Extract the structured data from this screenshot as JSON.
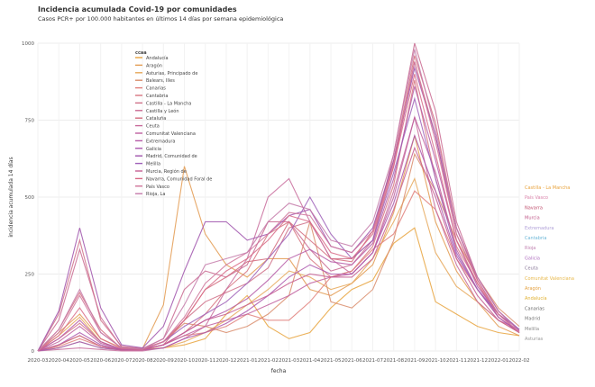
{
  "header": {
    "title": "Incidencia acumulada Covid-19 por comunidades",
    "subtitle": "Casos PCR+ por 100.000 habitantes en últimos 14 días por semana epidemiológica"
  },
  "chart_data": {
    "type": "line",
    "xlabel": "fecha",
    "ylabel": "incidencia acumulada 14 días",
    "xlim": [
      0,
      23
    ],
    "ylim": [
      0,
      1000
    ],
    "x_ticks": [
      "2020-03",
      "2020-04",
      "2020-05",
      "2020-06",
      "2020-07",
      "2020-08",
      "2020-09",
      "2020-10",
      "2020-11",
      "2020-12",
      "2021-01",
      "2021-02",
      "2021-03",
      "2021-04",
      "2021-05",
      "2021-06",
      "2021-07",
      "2021-08",
      "2021-09",
      "2021-10",
      "2021-11",
      "2021-12",
      "2022-01",
      "2022-02"
    ],
    "y_ticks": [
      0,
      250,
      500,
      750,
      1000
    ],
    "grid": true,
    "legend_title": "ccaa",
    "legend_position": "top-left inside",
    "series": [
      {
        "name": "Andalucía",
        "color": "#e8a33d",
        "values": [
          0,
          20,
          50,
          15,
          5,
          5,
          10,
          20,
          40,
          120,
          180,
          80,
          40,
          60,
          140,
          200,
          230,
          350,
          400,
          160,
          120,
          80,
          60,
          50
        ]
      },
      {
        "name": "Aragón",
        "color": "#e39a50",
        "values": [
          0,
          60,
          120,
          40,
          10,
          8,
          150,
          600,
          380,
          280,
          240,
          300,
          300,
          200,
          180,
          220,
          280,
          450,
          700,
          420,
          260,
          160,
          80,
          50
        ]
      },
      {
        "name": "Asturias, Principado de",
        "color": "#e6a85a",
        "values": [
          0,
          50,
          110,
          30,
          5,
          5,
          10,
          30,
          60,
          100,
          150,
          200,
          260,
          240,
          200,
          220,
          300,
          420,
          560,
          320,
          210,
          160,
          100,
          60
        ]
      },
      {
        "name": "Balears, Illes",
        "color": "#d98c6b",
        "values": [
          0,
          10,
          30,
          10,
          3,
          5,
          30,
          90,
          80,
          60,
          80,
          120,
          180,
          420,
          160,
          140,
          200,
          360,
          640,
          520,
          360,
          240,
          140,
          80
        ]
      },
      {
        "name": "Canarias",
        "color": "#e07f7a",
        "values": [
          0,
          15,
          40,
          15,
          5,
          5,
          20,
          50,
          60,
          80,
          120,
          100,
          100,
          160,
          240,
          260,
          330,
          380,
          520,
          460,
          300,
          200,
          120,
          70
        ]
      },
      {
        "name": "Cantabria",
        "color": "#d7747f",
        "values": [
          0,
          40,
          90,
          30,
          5,
          5,
          20,
          60,
          120,
          200,
          260,
          380,
          420,
          300,
          240,
          260,
          340,
          540,
          880,
          560,
          340,
          220,
          110,
          60
        ]
      },
      {
        "name": "Castilla - La Mancha",
        "color": "#cf6f87",
        "values": [
          0,
          120,
          360,
          100,
          15,
          8,
          30,
          100,
          160,
          190,
          220,
          270,
          400,
          420,
          300,
          300,
          360,
          600,
          940,
          700,
          380,
          230,
          120,
          60
        ]
      },
      {
        "name": "Castilla y León",
        "color": "#c96890",
        "values": [
          0,
          100,
          330,
          110,
          12,
          8,
          40,
          200,
          260,
          240,
          280,
          420,
          420,
          330,
          260,
          280,
          360,
          640,
          1000,
          780,
          420,
          240,
          130,
          65
        ]
      },
      {
        "name": "Cataluña",
        "color": "#d26a7c",
        "values": [
          0,
          70,
          190,
          70,
          8,
          5,
          20,
          100,
          200,
          240,
          290,
          300,
          420,
          360,
          300,
          290,
          390,
          620,
          960,
          740,
          400,
          230,
          120,
          60
        ]
      },
      {
        "name": "Ceuta",
        "color": "#c86b9b",
        "values": [
          0,
          5,
          10,
          5,
          0,
          0,
          10,
          40,
          80,
          200,
          300,
          500,
          560,
          420,
          300,
          250,
          320,
          520,
          760,
          460,
          280,
          160,
          100,
          70
        ]
      },
      {
        "name": "Comunitat Valenciana",
        "color": "#bf5f9f",
        "values": [
          0,
          30,
          80,
          25,
          5,
          5,
          20,
          50,
          80,
          100,
          120,
          150,
          180,
          220,
          240,
          250,
          320,
          500,
          760,
          580,
          330,
          200,
          110,
          60
        ]
      },
      {
        "name": "Extremadura",
        "color": "#b55aa7",
        "values": [
          0,
          40,
          100,
          30,
          5,
          5,
          20,
          60,
          100,
          130,
          170,
          230,
          300,
          330,
          290,
          280,
          350,
          560,
          860,
          620,
          360,
          210,
          120,
          60
        ]
      },
      {
        "name": "Galicia",
        "color": "#aa56ad",
        "values": [
          0,
          20,
          60,
          20,
          3,
          3,
          10,
          40,
          60,
          90,
          130,
          180,
          240,
          280,
          250,
          250,
          320,
          480,
          700,
          520,
          310,
          200,
          110,
          60
        ]
      },
      {
        "name": "Madrid, Comunidad de",
        "color": "#9f52ab",
        "values": [
          0,
          130,
          400,
          140,
          20,
          10,
          80,
          260,
          420,
          420,
          360,
          380,
          440,
          460,
          340,
          320,
          400,
          620,
          920,
          700,
          400,
          240,
          130,
          70
        ]
      },
      {
        "name": "Melilla",
        "color": "#9e60b8",
        "values": [
          0,
          10,
          30,
          10,
          3,
          5,
          30,
          80,
          120,
          160,
          220,
          300,
          380,
          500,
          380,
          300,
          360,
          580,
          820,
          560,
          320,
          200,
          120,
          70
        ]
      },
      {
        "name": "Murcia, Región de",
        "color": "#c65d92",
        "values": [
          0,
          20,
          50,
          15,
          3,
          3,
          20,
          60,
          100,
          120,
          150,
          180,
          220,
          250,
          240,
          240,
          300,
          460,
          660,
          500,
          300,
          180,
          100,
          60
        ]
      },
      {
        "name": "Navarra, Comunidad Foral de",
        "color": "#d86a86",
        "values": [
          0,
          50,
          140,
          40,
          8,
          5,
          30,
          100,
          200,
          260,
          300,
          360,
          440,
          420,
          320,
          300,
          380,
          600,
          900,
          640,
          360,
          220,
          120,
          60
        ]
      },
      {
        "name": "País Vasco",
        "color": "#cf749a",
        "values": [
          0,
          60,
          180,
          60,
          10,
          6,
          30,
          110,
          220,
          280,
          320,
          380,
          450,
          440,
          340,
          320,
          390,
          610,
          940,
          680,
          380,
          230,
          120,
          60
        ]
      },
      {
        "name": "Rioja, La",
        "color": "#c47aa9",
        "values": [
          0,
          70,
          200,
          60,
          10,
          6,
          40,
          150,
          280,
          300,
          320,
          420,
          480,
          460,
          360,
          340,
          420,
          640,
          980,
          720,
          400,
          240,
          130,
          65
        ]
      }
    ],
    "end_labels": [
      {
        "text": "Castilla - La Mancha",
        "color": "#e9a33d"
      },
      {
        "text": "País Vasco",
        "color": "#d880a8"
      },
      {
        "text": "Navarra",
        "color": "#c0506e"
      },
      {
        "text": "Murcia",
        "color": "#c05a8a"
      },
      {
        "text": "Extremadura",
        "color": "#b0a0d8"
      },
      {
        "text": "Cantabria",
        "color": "#6cb7d7"
      },
      {
        "text": "Rioja",
        "color": "#c080b0"
      },
      {
        "text": "Galicia",
        "color": "#b070c0"
      },
      {
        "text": "Ceuta",
        "color": "#8a7a9a"
      },
      {
        "text": "Comunitat Valenciana",
        "color": "#e8b84a"
      },
      {
        "text": "Aragón",
        "color": "#e4a040"
      },
      {
        "text": "Andalucía",
        "color": "#e0b030"
      },
      {
        "text": "Canarias",
        "color": "#6a6a6a"
      },
      {
        "text": "Madrid",
        "color": "#7a7a7a"
      },
      {
        "text": "Melilla",
        "color": "#8a8a8a"
      },
      {
        "text": "Asturias",
        "color": "#9a9a9a"
      }
    ]
  }
}
